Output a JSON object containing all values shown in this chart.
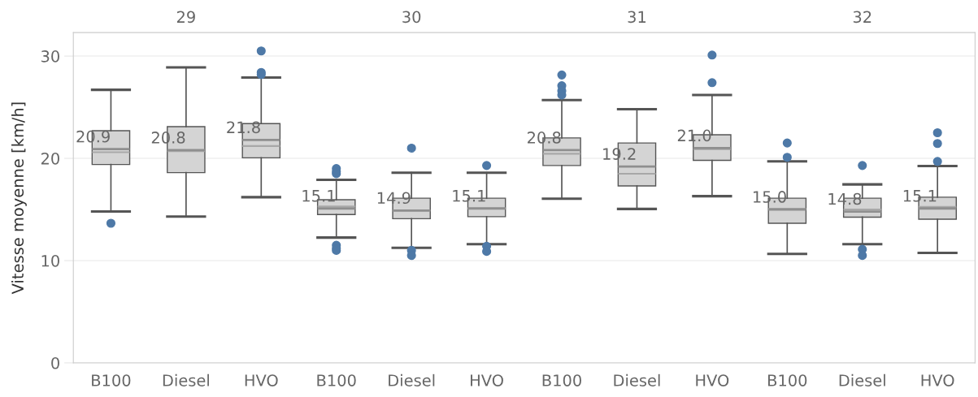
{
  "chart_data": {
    "type": "box",
    "ylabel": "Vitesse moyenne [km/h]",
    "categories": [
      "B100",
      "Diesel",
      "HVO",
      "B100",
      "Diesel",
      "HVO",
      "B100",
      "Diesel",
      "HVO",
      "B100",
      "Diesel",
      "HVO"
    ],
    "ylim": [
      0,
      32.3
    ],
    "yticks": [
      0,
      10,
      20,
      30
    ],
    "grid": "y",
    "annotations": [
      "29",
      "30",
      "31",
      "32",
      {
        "text": "20.9",
        "y": 20.9
      },
      {
        "text": "20.8",
        "y": 20.8
      },
      {
        "text": "21.8",
        "y": 21.8
      },
      {
        "text": "15.1",
        "y": 15.1
      },
      {
        "text": "14.9",
        "y": 14.9
      },
      {
        "text": "15.1",
        "y": 15.1
      },
      {
        "text": "20.8",
        "y": 20.8
      },
      {
        "text": "19.2",
        "y": 19.2
      },
      {
        "text": "21.0",
        "y": 21.0
      },
      {
        "text": "15.0",
        "y": 15.0
      },
      {
        "text": "14.8",
        "y": 14.8
      },
      {
        "text": "15.1",
        "y": 15.1
      }
    ],
    "series": [
      {
        "color": "#d4d4d4",
        "boxes": [
          {
            "low": 14.8,
            "q1": 19.4,
            "median": 20.6,
            "q3": 22.7,
            "high": 26.7,
            "mean": 20.9,
            "outliers": [
              13.65
            ]
          },
          {
            "low": 14.3,
            "q1": 18.6,
            "median": 20.7,
            "q3": 23.1,
            "high": 28.9,
            "mean": 20.8
          },
          {
            "low": 16.2,
            "q1": 20.05,
            "median": 21.2,
            "q3": 23.4,
            "high": 27.9,
            "mean": 21.8,
            "outliers": [
              30.5,
              28.4,
              28.2
            ]
          },
          {
            "low": 12.25,
            "q1": 14.5,
            "median": 15.3,
            "q3": 15.95,
            "high": 17.9,
            "mean": 15.1,
            "outliers": [
              19.0,
              18.7,
              18.5,
              11.5,
              11.2,
              11.0
            ]
          },
          {
            "low": 11.25,
            "q1": 14.1,
            "median": 14.9,
            "q3": 16.1,
            "high": 18.6,
            "mean": 14.9,
            "outliers": [
              21.0,
              11.0,
              10.5
            ]
          },
          {
            "low": 11.6,
            "q1": 14.3,
            "median": 15.1,
            "q3": 16.1,
            "high": 18.6,
            "mean": 15.1,
            "outliers": [
              19.3,
              11.4,
              10.9
            ]
          },
          {
            "low": 16.05,
            "q1": 19.3,
            "median": 20.45,
            "q3": 22.0,
            "high": 25.7,
            "mean": 20.8,
            "outliers": [
              28.15,
              27.1,
              26.6,
              26.2
            ]
          },
          {
            "low": 15.05,
            "q1": 17.3,
            "median": 18.5,
            "q3": 21.5,
            "high": 24.8,
            "mean": 19.2
          },
          {
            "low": 16.3,
            "q1": 19.8,
            "median": 20.9,
            "q3": 22.3,
            "high": 26.2,
            "mean": 21.0,
            "outliers": [
              30.1,
              27.4
            ]
          },
          {
            "low": 10.65,
            "q1": 13.65,
            "median": 15.05,
            "q3": 16.1,
            "high": 19.7,
            "mean": 15.0,
            "outliers": [
              21.5,
              20.1
            ]
          },
          {
            "low": 11.6,
            "q1": 14.25,
            "median": 15.0,
            "q3": 16.1,
            "high": 17.45,
            "mean": 14.8,
            "outliers": [
              19.3,
              11.1,
              10.5
            ]
          },
          {
            "low": 10.75,
            "q1": 14.05,
            "median": 15.25,
            "q3": 16.2,
            "high": 19.25,
            "mean": 15.1,
            "outliers": [
              22.5,
              21.45,
              19.7
            ]
          }
        ]
      }
    ]
  }
}
